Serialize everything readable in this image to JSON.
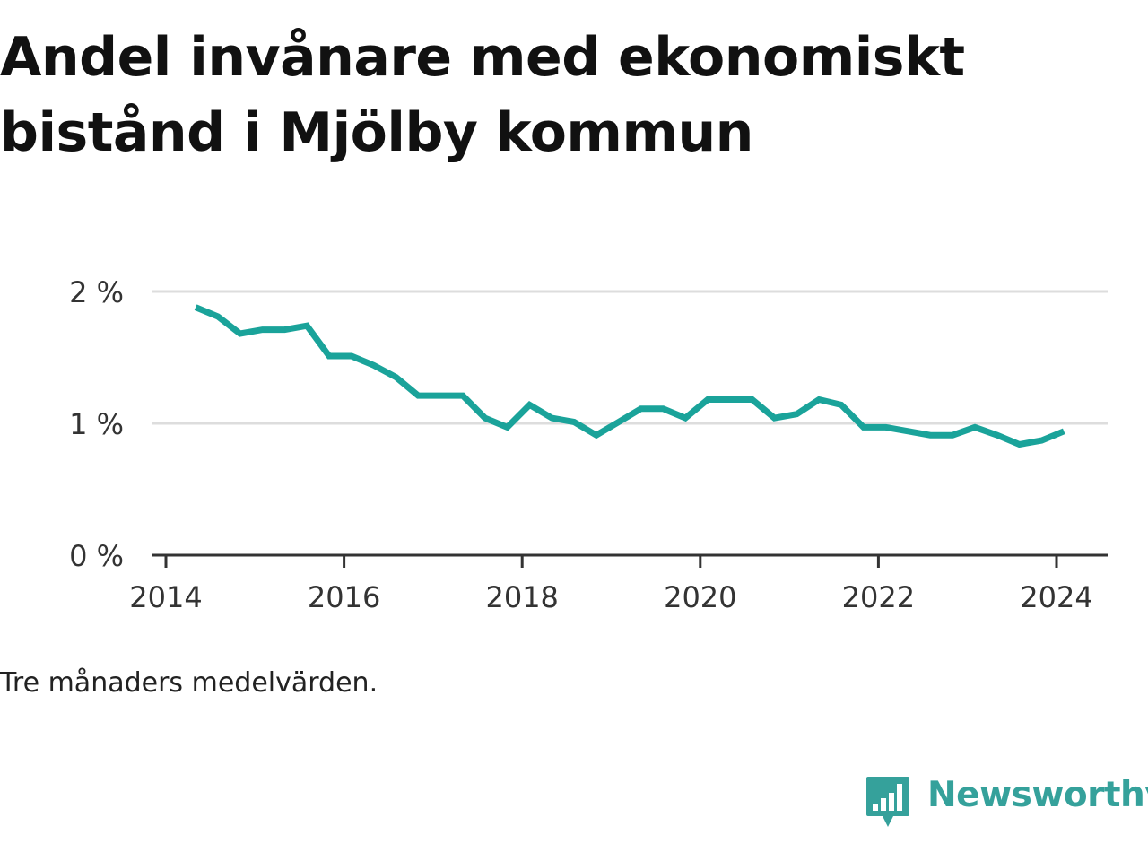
{
  "title": "Andel invånare med ekonomiskt bistånd i Mjölby kommun",
  "caption": "Tre månaders medelvärden.",
  "brand": {
    "name": "Newsworthy",
    "icon": "bar-chart-speech-bubble-icon",
    "color": "#35a19b"
  },
  "colors": {
    "line": "#1aa39a",
    "grid": "#dddddd",
    "axis": "#333333",
    "text": "#333333"
  },
  "chart_data": {
    "type": "line",
    "title": "Andel invånare med ekonomiskt bistånd i Mjölby kommun",
    "xlabel": "",
    "ylabel": "",
    "x_ticks": [
      "2014",
      "2016",
      "2018",
      "2020",
      "2022",
      "2024"
    ],
    "y_ticks": [
      "0 %",
      "1 %",
      "2 %"
    ],
    "ylim": [
      0,
      2
    ],
    "grid": "horizontal",
    "legend": "none",
    "series": [
      {
        "x": [
          "2014-05",
          "2014-08",
          "2014-11",
          "2015-02",
          "2015-05",
          "2015-08",
          "2015-11",
          "2016-02",
          "2016-05",
          "2016-08",
          "2016-11",
          "2017-02",
          "2017-05",
          "2017-08",
          "2017-11",
          "2018-02",
          "2018-05",
          "2018-08",
          "2018-11",
          "2019-02",
          "2019-05",
          "2019-08",
          "2019-11",
          "2020-02",
          "2020-05",
          "2020-08",
          "2020-11",
          "2021-02",
          "2021-05",
          "2021-08",
          "2021-11",
          "2022-02",
          "2022-05",
          "2022-08",
          "2022-11",
          "2023-02",
          "2023-05",
          "2023-08",
          "2023-11",
          "2024-02"
        ],
        "values": [
          1.88,
          1.81,
          1.68,
          1.71,
          1.71,
          1.74,
          1.51,
          1.51,
          1.44,
          1.35,
          1.21,
          1.21,
          1.21,
          1.04,
          0.97,
          1.14,
          1.04,
          1.01,
          0.91,
          1.01,
          1.11,
          1.11,
          1.04,
          1.18,
          1.18,
          1.18,
          1.04,
          1.07,
          1.18,
          1.14,
          0.97,
          0.97,
          0.94,
          0.91,
          0.91,
          0.97,
          0.91,
          0.84,
          0.87,
          0.94
        ]
      }
    ]
  }
}
